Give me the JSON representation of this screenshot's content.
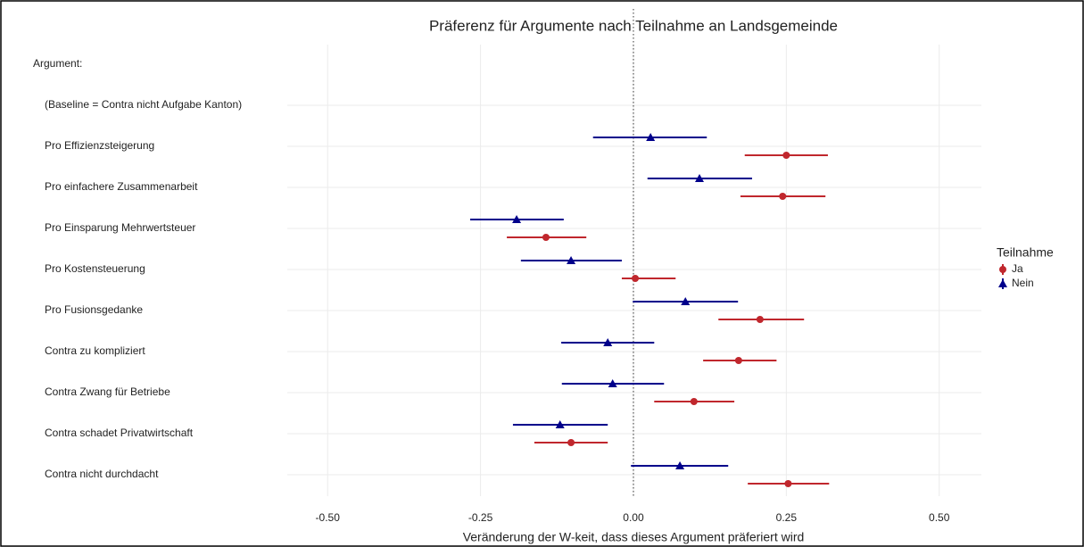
{
  "chart_data": {
    "type": "dotwhisker",
    "title": "Präferenz für Argumente nach Teilnahme an Landsgemeinde",
    "x_label": "Veränderung der W-keit, dass dieses Argument präferiert wird",
    "categories": [
      "Argument:",
      "(Baseline = Contra nicht Aufgabe Kanton)",
      "Pro Effizienzsteigerung",
      "Pro einfachere Zusammenarbeit",
      "Pro Einsparung Mehrwertsteuer",
      "Pro Kostensteuerung",
      "Pro Fusionsgedanke",
      "Contra zu kompliziert",
      "Contra Zwang für Betriebe",
      "Contra schadet Privatwirtschaft",
      "Contra nicht durchdacht"
    ],
    "series": [
      {
        "name": "Ja",
        "color": "#c0272d",
        "marker": "circle",
        "values": [
          null,
          null,
          0.25,
          0.244,
          -0.143,
          0.003,
          0.207,
          0.172,
          0.099,
          -0.102,
          0.253
        ],
        "lower": [
          null,
          null,
          0.182,
          0.175,
          -0.207,
          -0.019,
          0.139,
          0.114,
          0.034,
          -0.162,
          0.187
        ],
        "upper": [
          null,
          null,
          0.318,
          0.314,
          -0.077,
          0.069,
          0.279,
          0.234,
          0.165,
          -0.042,
          0.32
        ]
      },
      {
        "name": "Nein",
        "color": "#00008b",
        "marker": "triangle",
        "values": [
          null,
          null,
          0.028,
          0.108,
          -0.191,
          -0.102,
          0.085,
          -0.042,
          -0.034,
          -0.12,
          0.076
        ],
        "lower": [
          null,
          null,
          -0.066,
          0.023,
          -0.267,
          -0.184,
          -0.001,
          -0.118,
          -0.117,
          -0.197,
          -0.004
        ],
        "upper": [
          null,
          null,
          0.12,
          0.194,
          -0.114,
          -0.019,
          0.171,
          0.034,
          0.05,
          -0.042,
          0.155
        ]
      }
    ],
    "xlim": [
      -0.566,
      0.569
    ],
    "xticks": [
      {
        "value": -0.5,
        "label": "-0.50"
      },
      -0.25,
      {
        "value": 0,
        "label": "0.00"
      },
      0.25,
      {
        "value": 0.5,
        "label": "0.50"
      }
    ],
    "reference_line": 0,
    "legend_title": "Teilnahme",
    "legend_position": "right",
    "grid": true
  }
}
